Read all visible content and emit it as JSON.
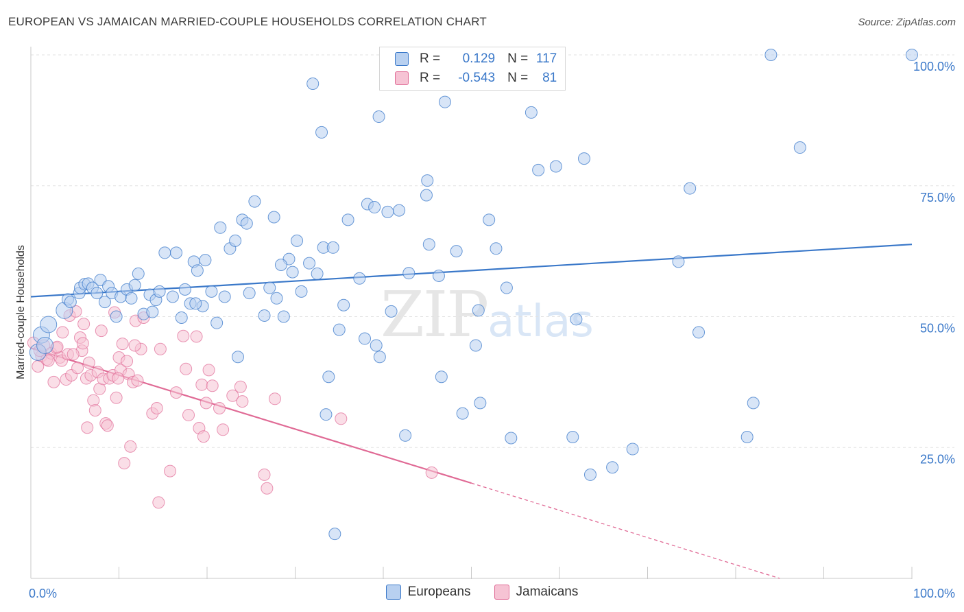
{
  "title": "EUROPEAN VS JAMAICAN MARRIED-COUPLE HOUSEHOLDS CORRELATION CHART",
  "source": "Source: ZipAtlas.com",
  "watermark": {
    "zip": "ZIP",
    "atlas": "atlas"
  },
  "colors": {
    "blue": "#3a78c9",
    "blue_fill": "#b8d0f0",
    "pink": "#e06a95",
    "pink_fill": "#f6c3d4",
    "grid": "#e2e2e2"
  },
  "legend": {
    "rows": [
      {
        "r_label": "R =",
        "r_value": "0.129",
        "n_label": "N =",
        "n_value": "117"
      },
      {
        "r_label": "R =",
        "r_value": "-0.543",
        "n_label": "N =",
        "n_value": "81"
      }
    ]
  },
  "bottom_legend": {
    "europeans": "Europeans",
    "jamaicans": "Jamaicans"
  },
  "chart_data": {
    "type": "scatter",
    "title": "EUROPEAN VS JAMAICAN MARRIED-COUPLE HOUSEHOLDS CORRELATION CHART",
    "xlabel": "",
    "ylabel": "Married-couple Households",
    "xlim": [
      0,
      100
    ],
    "ylim": [
      0,
      100
    ],
    "x_tick_labels": {
      "left": "0.0%",
      "right": "100.0%"
    },
    "y_ticks": [
      {
        "value": 100,
        "label": "100.0%"
      },
      {
        "value": 75,
        "label": "75.0%"
      },
      {
        "value": 50,
        "label": "50.0%"
      },
      {
        "value": 25,
        "label": "25.0%"
      }
    ],
    "series": [
      {
        "name": "Europeans",
        "r": 0.129,
        "n": 117,
        "trend": {
          "x0": 0,
          "y0": 53.8,
          "x1": 100,
          "y1": 63.8,
          "dashed_extension": false
        },
        "points": [
          [
            0.8,
            43.2
          ],
          [
            1.2,
            46.5
          ],
          [
            1.6,
            44.5
          ],
          [
            2,
            48.5
          ],
          [
            3.8,
            51.2
          ],
          [
            4.2,
            53.3
          ],
          [
            4.5,
            52.8
          ],
          [
            5.5,
            54.5
          ],
          [
            5.6,
            55.5
          ],
          [
            6.1,
            56.2
          ],
          [
            6.5,
            56.3
          ],
          [
            7,
            55.5
          ],
          [
            7.5,
            54.5
          ],
          [
            7.9,
            57
          ],
          [
            8.4,
            52.8
          ],
          [
            8.8,
            55.8
          ],
          [
            9.2,
            54.5
          ],
          [
            9.7,
            50
          ],
          [
            10.2,
            53.8
          ],
          [
            10.9,
            55.2
          ],
          [
            11.4,
            53.5
          ],
          [
            11.8,
            56
          ],
          [
            12.2,
            58.2
          ],
          [
            12.8,
            50.5
          ],
          [
            13.5,
            54.2
          ],
          [
            14.2,
            53.2
          ],
          [
            14.6,
            54.8
          ],
          [
            15.2,
            62.2
          ],
          [
            16.1,
            53.8
          ],
          [
            16.5,
            62.2
          ],
          [
            17.1,
            49.8
          ],
          [
            17.5,
            55.2
          ],
          [
            18.1,
            52.5
          ],
          [
            18.5,
            60.5
          ],
          [
            18.9,
            58.8
          ],
          [
            19.5,
            52
          ],
          [
            19.8,
            60.8
          ],
          [
            20.5,
            54.8
          ],
          [
            21.1,
            48.8
          ],
          [
            21.5,
            67
          ],
          [
            22,
            53.8
          ],
          [
            22.6,
            63
          ],
          [
            23.2,
            64.5
          ],
          [
            23.5,
            42.3
          ],
          [
            24,
            68.5
          ],
          [
            24.5,
            67.8
          ],
          [
            24.8,
            54.5
          ],
          [
            25.4,
            72
          ],
          [
            26.5,
            50.2
          ],
          [
            27.1,
            55.5
          ],
          [
            27.6,
            69
          ],
          [
            27.9,
            53.5
          ],
          [
            28.7,
            50
          ],
          [
            29.3,
            61
          ],
          [
            29.7,
            58.5
          ],
          [
            30.2,
            64.5
          ],
          [
            30.7,
            54.8
          ],
          [
            31.6,
            60.2
          ],
          [
            32.5,
            58.2
          ],
          [
            33.2,
            63.2
          ],
          [
            33.8,
            38.5
          ],
          [
            34.3,
            63.2
          ],
          [
            35,
            47.5
          ],
          [
            35.5,
            52.2
          ],
          [
            36,
            68.5
          ],
          [
            37.3,
            57.3
          ],
          [
            37.9,
            45.8
          ],
          [
            38.2,
            71.5
          ],
          [
            39.2,
            44.5
          ],
          [
            39.6,
            42.3
          ],
          [
            40.5,
            70
          ],
          [
            40.9,
            51
          ],
          [
            41.8,
            70.3
          ],
          [
            42.9,
            58.3
          ],
          [
            45,
            76
          ],
          [
            46.3,
            57.8
          ],
          [
            47,
            91
          ],
          [
            50.5,
            44.5
          ],
          [
            50.8,
            51.2
          ],
          [
            52,
            68.5
          ],
          [
            52.8,
            63
          ],
          [
            54,
            55.5
          ],
          [
            56.8,
            89
          ],
          [
            57.6,
            78
          ],
          [
            59.6,
            78.7
          ],
          [
            61.5,
            27
          ],
          [
            61.9,
            49.5
          ],
          [
            62.8,
            80.2
          ],
          [
            63.5,
            19.8
          ],
          [
            66,
            21.2
          ],
          [
            68.3,
            24.7
          ],
          [
            73.5,
            60.5
          ],
          [
            74.8,
            74.5
          ],
          [
            75.8,
            47
          ],
          [
            81.3,
            27
          ],
          [
            82,
            33.5
          ],
          [
            84,
            100
          ],
          [
            87.3,
            82.3
          ],
          [
            100,
            100
          ],
          [
            54.5,
            26.8
          ],
          [
            46.6,
            38.5
          ],
          [
            44.9,
            73.2
          ],
          [
            39.5,
            88.2
          ],
          [
            39,
            70.9
          ],
          [
            41.1,
            100
          ],
          [
            33,
            85.2
          ],
          [
            34.5,
            8.5
          ],
          [
            33.5,
            31.3
          ],
          [
            49,
            31.5
          ],
          [
            51,
            33.5
          ],
          [
            42.5,
            27.3
          ],
          [
            45.2,
            63.8
          ],
          [
            48.3,
            62.5
          ],
          [
            32,
            94.5
          ],
          [
            28.4,
            59.9
          ],
          [
            18.7,
            52.5
          ],
          [
            13.8,
            50.9
          ]
        ]
      },
      {
        "name": "Jamaicans",
        "r": -0.543,
        "n": 81,
        "trend": {
          "x0": 0,
          "y0": 44.0,
          "x1": 50,
          "y1": 18.2,
          "dashed_to": {
            "x": 85,
            "y": 0
          }
        },
        "points": [
          [
            0.3,
            45
          ],
          [
            0.8,
            40.5
          ],
          [
            1.2,
            42.5
          ],
          [
            1.5,
            44.5
          ],
          [
            1.8,
            41.8
          ],
          [
            2.3,
            43
          ],
          [
            2.6,
            37.5
          ],
          [
            2.9,
            44
          ],
          [
            3.3,
            42.2
          ],
          [
            3.5,
            41.6
          ],
          [
            3.6,
            47
          ],
          [
            4,
            38
          ],
          [
            4.2,
            42.8
          ],
          [
            4.4,
            50.2
          ],
          [
            4.6,
            38.8
          ],
          [
            5.1,
            51
          ],
          [
            5.3,
            40.2
          ],
          [
            5.6,
            46
          ],
          [
            5.8,
            43.5
          ],
          [
            6,
            48.6
          ],
          [
            6.3,
            38.2
          ],
          [
            6.4,
            28.8
          ],
          [
            6.8,
            38.8
          ],
          [
            7.1,
            34
          ],
          [
            7.3,
            32.1
          ],
          [
            7.6,
            39.4
          ],
          [
            7.8,
            36.2
          ],
          [
            8,
            47.3
          ],
          [
            8.2,
            38.1
          ],
          [
            8.5,
            29.6
          ],
          [
            8.7,
            29.2
          ],
          [
            8.9,
            38.2
          ],
          [
            9.3,
            38.8
          ],
          [
            9.5,
            50.8
          ],
          [
            9.7,
            34.5
          ],
          [
            10,
            42.2
          ],
          [
            10.2,
            39.8
          ],
          [
            10.4,
            44.8
          ],
          [
            10.6,
            22
          ],
          [
            10.9,
            41.5
          ],
          [
            11.1,
            39
          ],
          [
            11.3,
            25.2
          ],
          [
            11.6,
            37.5
          ],
          [
            11.9,
            49.2
          ],
          [
            12.1,
            37.8
          ],
          [
            12.5,
            43.8
          ],
          [
            12.8,
            49.8
          ],
          [
            13.8,
            31.5
          ],
          [
            14.3,
            32.5
          ],
          [
            14.5,
            14.5
          ],
          [
            14.7,
            43.8
          ],
          [
            15.8,
            20.5
          ],
          [
            16.5,
            35.5
          ],
          [
            17.3,
            46.3
          ],
          [
            17.6,
            40
          ],
          [
            17.9,
            31.2
          ],
          [
            18.8,
            46.2
          ],
          [
            19.1,
            28.7
          ],
          [
            19.4,
            37
          ],
          [
            19.6,
            27.1
          ],
          [
            19.9,
            33.5
          ],
          [
            20.2,
            39.8
          ],
          [
            20.6,
            36.8
          ],
          [
            21.4,
            32.5
          ],
          [
            21.8,
            28.4
          ],
          [
            22.9,
            34.9
          ],
          [
            23.8,
            36.6
          ],
          [
            24,
            33.8
          ],
          [
            26.5,
            19.8
          ],
          [
            26.8,
            17.2
          ],
          [
            27.7,
            34.3
          ],
          [
            35.2,
            30.5
          ],
          [
            45.5,
            20.2
          ],
          [
            3,
            44.2
          ],
          [
            1,
            43.5
          ],
          [
            4.8,
            42.8
          ],
          [
            9.9,
            38.2
          ],
          [
            11.8,
            44.5
          ],
          [
            6.6,
            41.2
          ],
          [
            5.9,
            44.9
          ],
          [
            2,
            41.6
          ]
        ]
      }
    ]
  }
}
